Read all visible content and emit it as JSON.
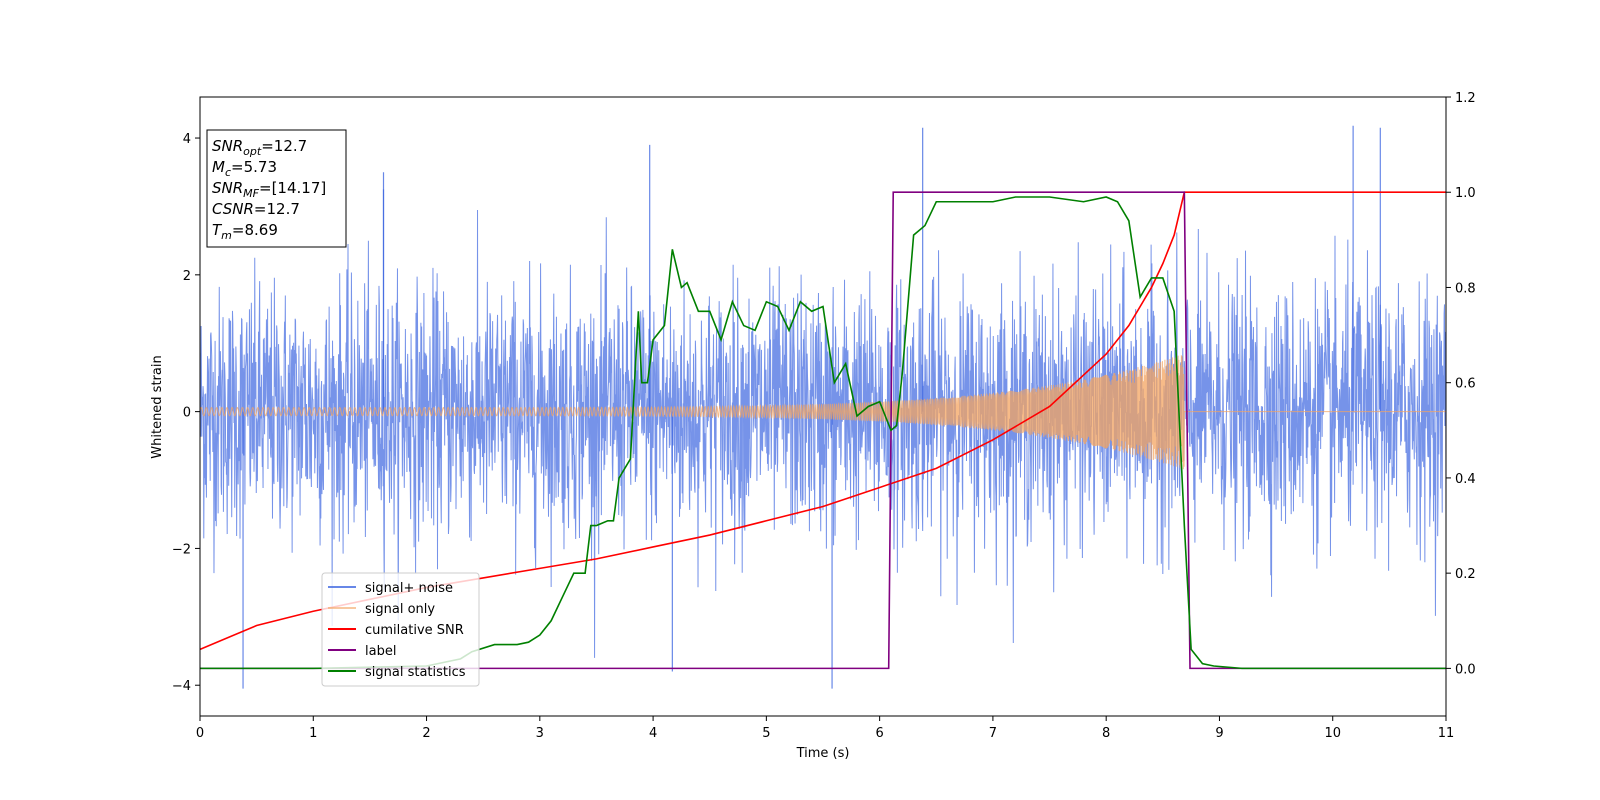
{
  "chart_data": {
    "type": "line",
    "xlabel": "Time (s)",
    "ylabel": "Whitened strain",
    "xlim": [
      0,
      11
    ],
    "ylim": [
      -4.45,
      4.6
    ],
    "ylim_right": [
      -0.1,
      1.2
    ],
    "xticks": [
      0,
      1,
      2,
      3,
      4,
      5,
      6,
      7,
      8,
      9,
      10,
      11
    ],
    "yticks": [
      -4,
      -2,
      0,
      2,
      4
    ],
    "yticks_right": [
      0.0,
      0.2,
      0.4,
      0.6,
      0.8,
      1.0,
      1.2
    ],
    "grid": false,
    "legend_position": "lower-left",
    "info_box": [
      {
        "base": "SNR",
        "sub": "opt",
        "value": "=12.7"
      },
      {
        "base": "M",
        "sub": "c",
        "value": "=5.73"
      },
      {
        "base": "SNR",
        "sub": "MF",
        "value": "=[14.17]"
      },
      {
        "base": "CSNR",
        "sub": "",
        "value": "=12.7"
      },
      {
        "base": "T",
        "sub": "m",
        "value": "=8.69"
      }
    ],
    "series": [
      {
        "name": "signal+ noise",
        "axis": "left",
        "color": "#4169e1",
        "kind": "noise",
        "noise_std": 0.9,
        "spikes": [
          [
            0.38,
            -4.05
          ],
          [
            4.17,
            -3.8
          ],
          [
            5.58,
            -4.05
          ],
          [
            6.38,
            4.15
          ],
          [
            10.18,
            4.18
          ],
          [
            10.42,
            4.15
          ],
          [
            3.97,
            3.9
          ],
          [
            1.62,
            3.25
          ],
          [
            1.62,
            3.5
          ]
        ]
      },
      {
        "name": "signal only",
        "axis": "left",
        "color": "#f4a460",
        "kind": "chirp",
        "amp_start": 0.06,
        "amp_end": 0.85,
        "t_end": 8.69
      },
      {
        "name": "cumilative SNR",
        "axis": "right",
        "color": "#ff0000",
        "x": [
          0,
          0.5,
          1,
          1.5,
          2,
          2.5,
          3,
          3.5,
          4,
          4.5,
          5,
          5.5,
          6,
          6.5,
          7,
          7.5,
          8,
          8.2,
          8.4,
          8.5,
          8.6,
          8.69,
          11
        ],
        "y": [
          0.04,
          0.09,
          0.12,
          0.145,
          0.17,
          0.19,
          0.21,
          0.23,
          0.255,
          0.28,
          0.31,
          0.34,
          0.38,
          0.42,
          0.48,
          0.55,
          0.66,
          0.72,
          0.8,
          0.85,
          0.91,
          1.0,
          1.0
        ]
      },
      {
        "name": "label",
        "axis": "right",
        "color": "#800080",
        "x": [
          0,
          6.08,
          6.12,
          8.69,
          8.74,
          11
        ],
        "y": [
          0,
          0,
          1,
          1,
          0,
          0
        ]
      },
      {
        "name": "signal statistics",
        "axis": "right",
        "color": "#008000",
        "x": [
          0,
          1,
          2,
          2.3,
          2.4,
          2.6,
          2.8,
          2.9,
          3.0,
          3.1,
          3.2,
          3.3,
          3.4,
          3.45,
          3.5,
          3.6,
          3.65,
          3.7,
          3.8,
          3.87,
          3.9,
          3.95,
          4.0,
          4.1,
          4.17,
          4.25,
          4.3,
          4.4,
          4.5,
          4.6,
          4.7,
          4.8,
          4.9,
          5.0,
          5.1,
          5.2,
          5.3,
          5.4,
          5.5,
          5.6,
          5.7,
          5.8,
          5.9,
          6.0,
          6.1,
          6.15,
          6.2,
          6.3,
          6.4,
          6.5,
          6.6,
          6.8,
          7.0,
          7.2,
          7.5,
          7.8,
          8.0,
          8.1,
          8.2,
          8.3,
          8.4,
          8.5,
          8.6,
          8.69,
          8.75,
          8.85,
          8.95,
          9.2,
          11
        ],
        "y": [
          0.0,
          0.0,
          0.005,
          0.02,
          0.035,
          0.05,
          0.05,
          0.055,
          0.07,
          0.1,
          0.15,
          0.2,
          0.2,
          0.3,
          0.3,
          0.31,
          0.31,
          0.4,
          0.44,
          0.75,
          0.6,
          0.6,
          0.69,
          0.72,
          0.88,
          0.8,
          0.81,
          0.75,
          0.75,
          0.69,
          0.77,
          0.72,
          0.71,
          0.77,
          0.76,
          0.71,
          0.77,
          0.75,
          0.76,
          0.6,
          0.64,
          0.53,
          0.55,
          0.56,
          0.5,
          0.51,
          0.62,
          0.91,
          0.93,
          0.98,
          0.98,
          0.98,
          0.98,
          0.99,
          0.99,
          0.98,
          0.99,
          0.98,
          0.94,
          0.78,
          0.82,
          0.82,
          0.75,
          0.3,
          0.04,
          0.01,
          0.005,
          0.0,
          0.0
        ]
      }
    ]
  }
}
